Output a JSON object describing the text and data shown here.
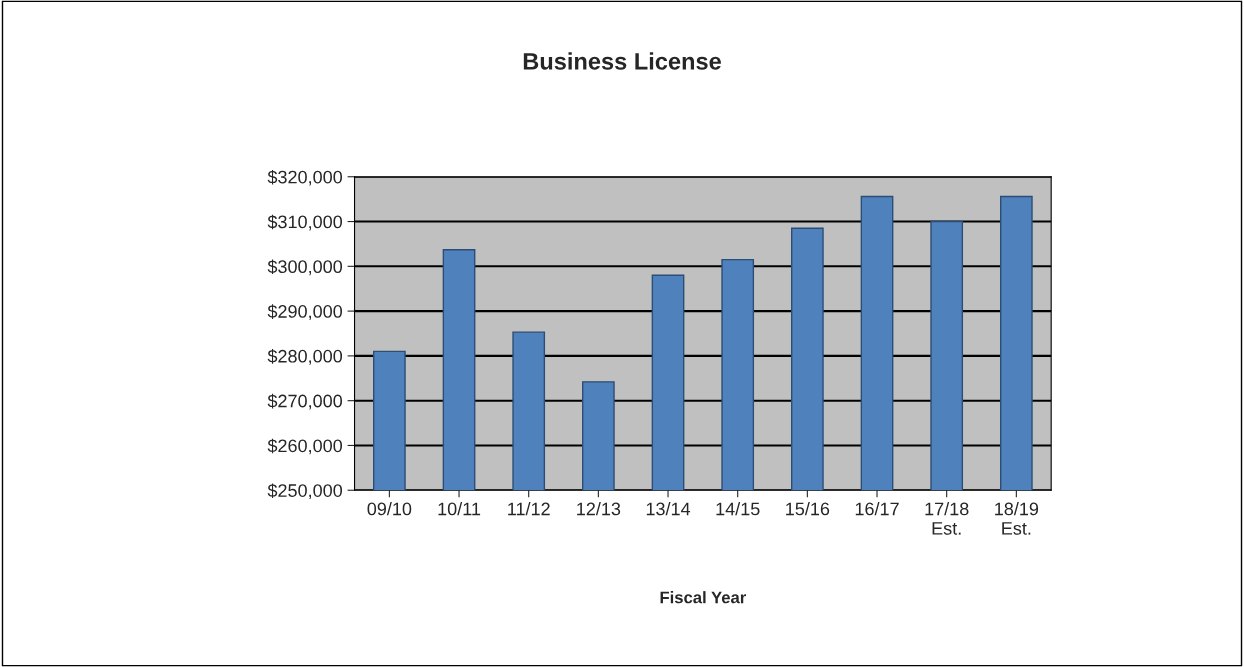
{
  "chart_data": {
    "type": "bar",
    "title": "Business License",
    "xlabel": "Fiscal Year",
    "categories": [
      "09/10",
      "10/11",
      "11/12",
      "12/13",
      "13/14",
      "14/15",
      "15/16",
      "16/17",
      "17/18\nEst.",
      "18/19\nEst."
    ],
    "values": [
      281000,
      303700,
      285300,
      274200,
      298000,
      301500,
      308500,
      315600,
      310000,
      315600
    ],
    "color": "#4f81bd",
    "ylim": [
      250000,
      320000
    ],
    "yticks": [
      {
        "value": 250000,
        "label": "$250,000"
      },
      {
        "value": 260000,
        "label": "$260,000"
      },
      {
        "value": 270000,
        "label": "$270,000"
      },
      {
        "value": 280000,
        "label": "$280,000"
      },
      {
        "value": 290000,
        "label": "$290,000"
      },
      {
        "value": 300000,
        "label": "$300,000"
      },
      {
        "value": 310000,
        "label": "$310,000"
      },
      {
        "value": 320000,
        "label": "$320,000"
      }
    ],
    "grid": "y"
  }
}
